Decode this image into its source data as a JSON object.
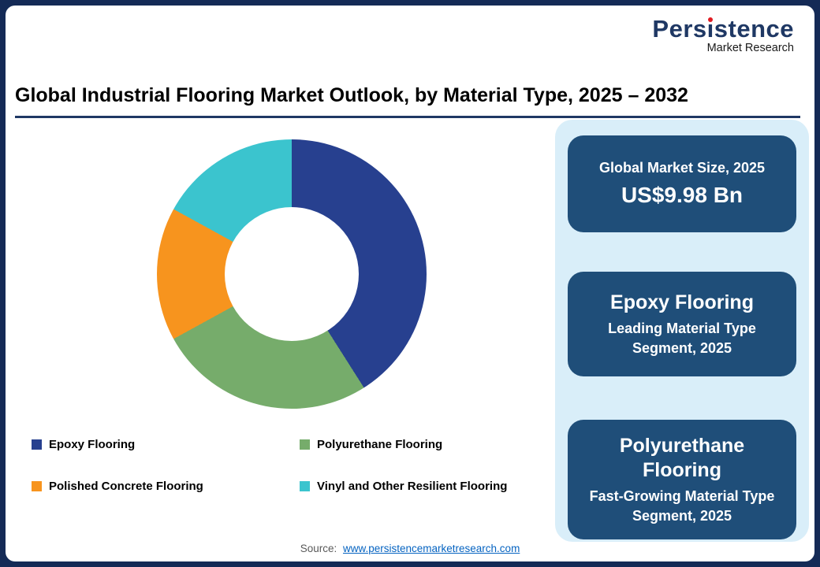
{
  "logo": {
    "name": "Persistence",
    "subtitle": "Market Research",
    "accent_color": "#E11B22",
    "text_color": "#1F3864"
  },
  "header": {
    "title": "Global Industrial Flooring Market Outlook, by Material Type, 2025 – 2032"
  },
  "chart_data": {
    "type": "pie",
    "subtype": "donut",
    "title": "Global Industrial Flooring Market Outlook, by Material Type, 2025 – 2032",
    "categories": [
      "Epoxy Flooring",
      "Polyurethane Flooring",
      "Polished Concrete Flooring",
      "Vinyl and Other Resilient Flooring"
    ],
    "values": [
      41,
      26,
      16,
      17
    ],
    "colors": [
      "#27408F",
      "#76AC6B",
      "#F7941E",
      "#3BC4CE"
    ],
    "note": "No numeric data labels shown in chart; segment shares estimated from arc angles (percent of total).",
    "legend_position": "bottom",
    "donut_hole_ratio": 0.5,
    "start_angle_deg": 0
  },
  "highlight_panel": {
    "background": "#D9EEF9",
    "card_background": "#1F4E79",
    "cards": [
      {
        "title": "Global Market Size, 2025",
        "value": "US$9.98 Bn"
      },
      {
        "title": "Epoxy Flooring",
        "value": "Leading Material Type Segment, 2025"
      },
      {
        "title": "Polyurethane Flooring",
        "value": "Fast-Growing Material Type Segment, 2025"
      }
    ]
  },
  "footer": {
    "source_label": "Source:",
    "source_link": "www.persistencemarketresearch.com"
  }
}
